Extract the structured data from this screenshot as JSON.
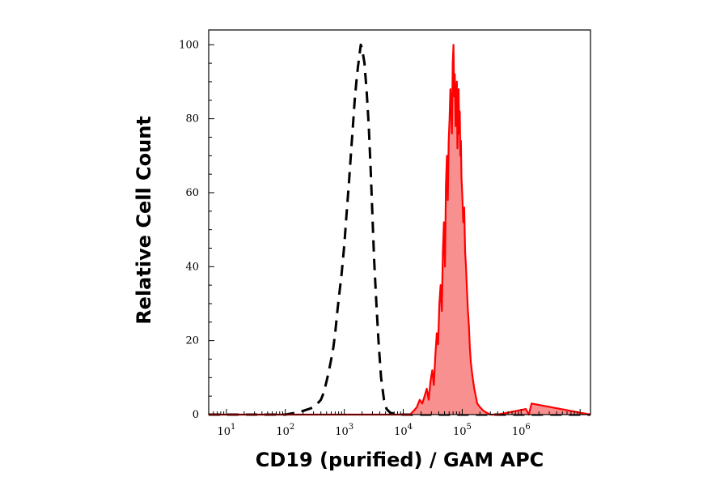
{
  "chart_data": {
    "type": "area",
    "xlabel": "CD19 (purified) / GAM APC",
    "ylabel": "Relative Cell Count",
    "x_scale": "log",
    "xlim": [
      5,
      15000000
    ],
    "ylim": [
      0,
      104
    ],
    "y_ticks": [
      {
        "value": 0,
        "label": "0"
      },
      {
        "value": 20,
        "label": "20"
      },
      {
        "value": 40,
        "label": "40"
      },
      {
        "value": 60,
        "label": "60"
      },
      {
        "value": 80,
        "label": "80"
      },
      {
        "value": 100,
        "label": "100"
      }
    ],
    "x_ticks": [
      {
        "value": 10,
        "base": "10",
        "exp": "1"
      },
      {
        "value": 100,
        "base": "10",
        "exp": "2"
      },
      {
        "value": 1000,
        "base": "10",
        "exp": "3"
      },
      {
        "value": 10000,
        "base": "10",
        "exp": "4"
      },
      {
        "value": 100000,
        "base": "10",
        "exp": "5"
      },
      {
        "value": 1000000,
        "base": "10",
        "exp": "6"
      }
    ],
    "grid": false,
    "legend": "none",
    "series": [
      {
        "style": "dashed",
        "color": "#000000",
        "fill": "none",
        "x": [
          5,
          100,
          150,
          200,
          250,
          300,
          350,
          400,
          450,
          500,
          550,
          600,
          650,
          700,
          750,
          800,
          900,
          1000,
          1100,
          1200,
          1300,
          1400,
          1500,
          1600,
          1700,
          1800,
          1900,
          2000,
          2200,
          2400,
          2600,
          2800,
          3000,
          3200,
          3500,
          3800,
          4200,
          4700,
          5200,
          6000,
          8000,
          15000000
        ],
        "y": [
          0,
          0,
          0.5,
          1,
          1.5,
          2,
          3,
          4,
          6,
          9,
          12,
          15,
          18,
          22,
          27,
          31,
          38,
          46,
          55,
          63,
          71,
          78,
          85,
          90,
          94,
          97,
          100,
          99,
          95,
          87,
          78,
          66,
          54,
          42,
          30,
          20,
          10,
          4,
          1.5,
          0.5,
          0,
          0
        ]
      },
      {
        "style": "solid",
        "color": "#ff0000",
        "fill": "#f99090",
        "x": [
          5,
          13000,
          15000,
          17000,
          19000,
          21000,
          23000,
          25000,
          27000,
          29000,
          31000,
          33000,
          35000,
          37000,
          39000,
          41000,
          43000,
          45000,
          47000,
          49000,
          51000,
          53000,
          55000,
          57000,
          59000,
          61000,
          63000,
          65000,
          67000,
          69000,
          71000,
          73000,
          75000,
          77000,
          79000,
          81000,
          83000,
          85000,
          87000,
          89000,
          91000,
          93000,
          95000,
          97000,
          100000,
          104000,
          108000,
          112000,
          116000,
          120000,
          125000,
          130000,
          135000,
          140000,
          150000,
          160000,
          170000,
          180000,
          200000,
          230000,
          260000,
          300000,
          400000,
          1200000,
          1350000,
          1500000,
          15000000
        ],
        "y": [
          0,
          0,
          1,
          2,
          4,
          3,
          5,
          7,
          4,
          9,
          12,
          8,
          16,
          22,
          19,
          30,
          35,
          28,
          44,
          52,
          40,
          62,
          70,
          58,
          74,
          80,
          88,
          83,
          76,
          95,
          100,
          86,
          92,
          78,
          84,
          90,
          72,
          81,
          88,
          76,
          82,
          70,
          74,
          64,
          60,
          52,
          56,
          44,
          40,
          34,
          28,
          24,
          18,
          14,
          10,
          7,
          5,
          3,
          2,
          1,
          0.5,
          0,
          0,
          1.5,
          0,
          3,
          0
        ]
      }
    ]
  }
}
